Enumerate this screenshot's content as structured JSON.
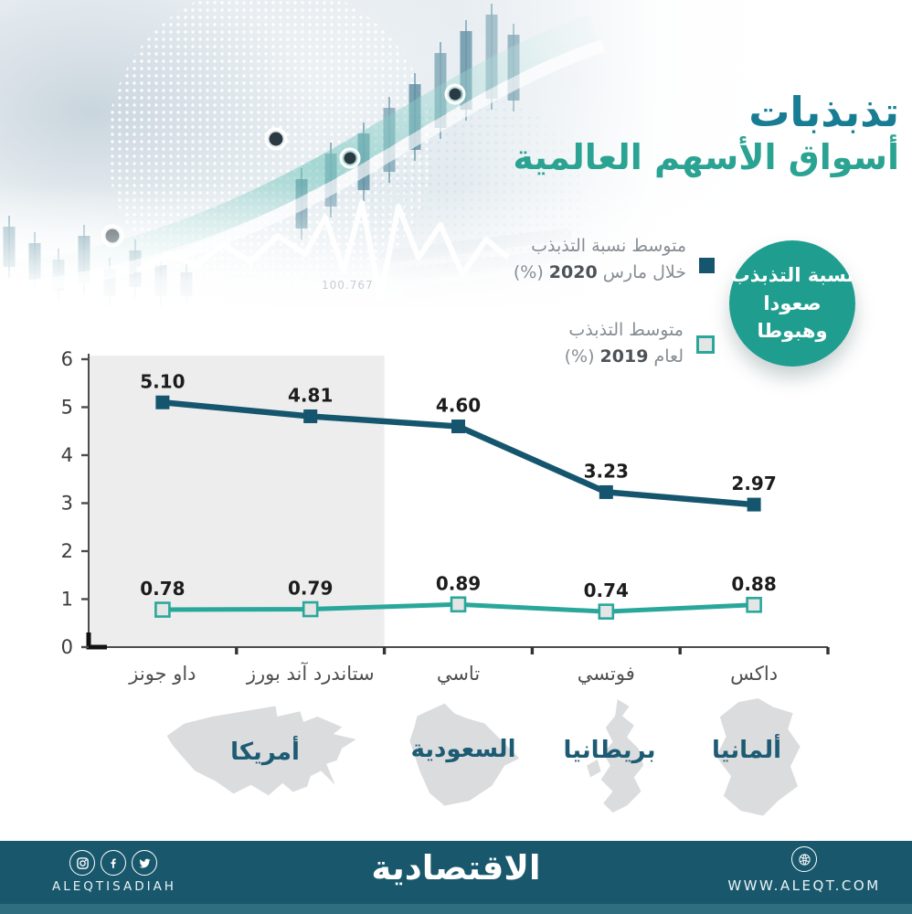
{
  "title": {
    "line1": "تذبذبات",
    "line2": "أسواق الأسهم العالمية"
  },
  "colors": {
    "title_primary": "#187d93",
    "title_secondary": "#2ba392",
    "series_2020": "#15566e",
    "series_2019": "#2aa79b",
    "badge_teal": "#1f9e90",
    "footer_bar": "#19586c",
    "footer_strip": "#2f6d80",
    "highlight_gray": "#ededee"
  },
  "hero": {
    "watermark_number": "100.767"
  },
  "legend": {
    "march2020": {
      "line1": "متوسط نسبة التذبذب",
      "line2_prefix": "خلال مارس",
      "line2_year": "2020",
      "line2_suffix": "(%)",
      "color": "#15566e"
    },
    "y2019": {
      "line1": "متوسط التذبذب",
      "line2_prefix": "لعام",
      "line2_year": "2019",
      "line2_suffix": "(%)",
      "color": "#2aa79b"
    }
  },
  "badge": {
    "line1": "نسبة التذبذب",
    "line2": "صعودا وهبوطا",
    "color": "#1f9e90"
  },
  "chart_data": {
    "type": "line",
    "categories": [
      "داو جونز",
      "ستاندرد آند بورز",
      "تاسي",
      "فوتسي",
      "داكس"
    ],
    "series": [
      {
        "name": "متوسط نسبة التذبذب خلال مارس 2020 (%)",
        "values": [
          5.1,
          4.81,
          4.6,
          3.23,
          2.97
        ],
        "color": "#15566e",
        "marker": "filled-square"
      },
      {
        "name": "متوسط التذبذب لعام 2019 (%)",
        "values": [
          0.78,
          0.79,
          0.89,
          0.74,
          0.88
        ],
        "color": "#2aa79b",
        "marker": "light-square"
      }
    ],
    "ylim": [
      0,
      6
    ],
    "yticks": [
      0,
      1,
      2,
      3,
      4,
      5,
      6
    ],
    "highlight_region": {
      "from_category": 0,
      "to_category": 1
    },
    "grid": false,
    "legend_position": "top-right",
    "value_label_decimals": 2
  },
  "countries": [
    {
      "label": "أمريكا",
      "shape": "usa"
    },
    {
      "label": "السعودية",
      "shape": "saudi-arabia"
    },
    {
      "label": "بريطانيا",
      "shape": "uk"
    },
    {
      "label": "ألمانيا",
      "shape": "germany"
    }
  ],
  "footer": {
    "brand_latin": "ALEQTISADIAH",
    "logo_arabic": "الاقتصادية",
    "website": "WWW.ALEQT.COM",
    "social": [
      "instagram",
      "facebook",
      "twitter"
    ]
  }
}
